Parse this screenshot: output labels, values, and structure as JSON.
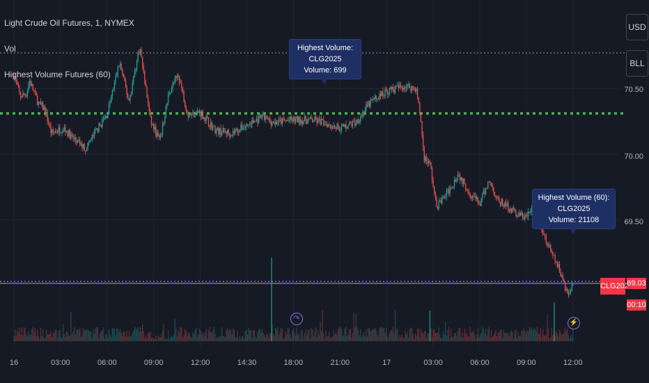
{
  "header": {
    "symbol_line": "Light Crude Oil Futures, 1, NYMEX",
    "vol_label": "Vol",
    "indicator_label": "Highest Volume Futures (60)"
  },
  "scale_buttons": {
    "currency": "USD",
    "unit": "BLL"
  },
  "tooltips": [
    {
      "title": "Highest Volume: CLG2025",
      "volume": "Volume: 699"
    },
    {
      "title": "Highest Volume (60): CLG2025",
      "volume": "Volume: 21108"
    }
  ],
  "badges": {
    "contract": "CLG2025",
    "price": "69.03",
    "countdown": "00:10"
  },
  "event_icons": {
    "first": "split-icon",
    "second": "lightning-icon"
  },
  "colors": {
    "bg": "#161a25",
    "up": "#26a69a",
    "down": "#ef5350",
    "highest_line": "#4caf50",
    "price_line": "#9c6fe0",
    "badge": "#f23645"
  },
  "chart_data": {
    "type": "candlestick",
    "y_ticks": [
      "70.50",
      "70.00",
      "69.50"
    ],
    "x_ticks": [
      "16",
      "03:00",
      "06:00",
      "09:00",
      "12:00",
      "14:30",
      "18:00",
      "21:00",
      "17",
      "03:00",
      "06:00",
      "09:00",
      "12:00"
    ],
    "ylim": [
      68.84,
      71.1
    ],
    "highest_volume_level": 70.31,
    "last_price": 69.03,
    "close_path": [
      {
        "t": 0.0,
        "p": 70.6
      },
      {
        "t": 0.2,
        "p": 70.44
      },
      {
        "t": 0.4,
        "p": 70.46
      },
      {
        "t": 0.5,
        "p": 70.56
      },
      {
        "t": 0.8,
        "p": 70.38
      },
      {
        "t": 1.0,
        "p": 70.34
      },
      {
        "t": 1.2,
        "p": 70.16
      },
      {
        "t": 1.6,
        "p": 70.2
      },
      {
        "t": 1.9,
        "p": 70.12
      },
      {
        "t": 2.3,
        "p": 70.04
      },
      {
        "t": 2.6,
        "p": 70.16
      },
      {
        "t": 3.0,
        "p": 70.3
      },
      {
        "t": 3.4,
        "p": 70.7
      },
      {
        "t": 3.7,
        "p": 70.4
      },
      {
        "t": 4.05,
        "p": 70.82
      },
      {
        "t": 4.4,
        "p": 70.25
      },
      {
        "t": 4.7,
        "p": 70.1
      },
      {
        "t": 5.0,
        "p": 70.48
      },
      {
        "t": 5.3,
        "p": 70.6
      },
      {
        "t": 5.6,
        "p": 70.3
      },
      {
        "t": 6.0,
        "p": 70.32
      },
      {
        "t": 6.5,
        "p": 70.18
      },
      {
        "t": 7.0,
        "p": 70.16
      },
      {
        "t": 7.5,
        "p": 70.22
      },
      {
        "t": 8.0,
        "p": 70.28
      },
      {
        "t": 8.4,
        "p": 70.24
      },
      {
        "t": 8.9,
        "p": 70.26
      },
      {
        "t": 9.6,
        "p": 70.26
      },
      {
        "t": 10.0,
        "p": 70.24
      },
      {
        "t": 10.5,
        "p": 70.2
      },
      {
        "t": 11.0,
        "p": 70.24
      },
      {
        "t": 11.5,
        "p": 70.4
      },
      {
        "t": 12.0,
        "p": 70.48
      },
      {
        "t": 12.6,
        "p": 70.52
      },
      {
        "t": 12.95,
        "p": 70.5
      },
      {
        "t": 13.1,
        "p": 70.26
      },
      {
        "t": 13.2,
        "p": 69.98
      },
      {
        "t": 13.4,
        "p": 69.92
      },
      {
        "t": 13.6,
        "p": 69.6
      },
      {
        "t": 13.95,
        "p": 69.7
      },
      {
        "t": 14.3,
        "p": 69.85
      },
      {
        "t": 14.7,
        "p": 69.7
      },
      {
        "t": 15.0,
        "p": 69.62
      },
      {
        "t": 15.3,
        "p": 69.8
      },
      {
        "t": 15.6,
        "p": 69.64
      },
      {
        "t": 15.9,
        "p": 69.6
      },
      {
        "t": 16.2,
        "p": 69.54
      },
      {
        "t": 16.5,
        "p": 69.52
      },
      {
        "t": 16.8,
        "p": 69.62
      },
      {
        "t": 17.0,
        "p": 69.4
      },
      {
        "t": 17.3,
        "p": 69.25
      },
      {
        "t": 17.6,
        "p": 69.1
      },
      {
        "t": 17.85,
        "p": 68.92
      },
      {
        "t": 18.0,
        "p": 69.03
      }
    ],
    "volume_spikes": [
      {
        "t": 8.3,
        "v": 21108
      },
      {
        "t": 13.4,
        "v": 6800
      },
      {
        "t": 17.4,
        "v": 9000
      }
    ]
  }
}
